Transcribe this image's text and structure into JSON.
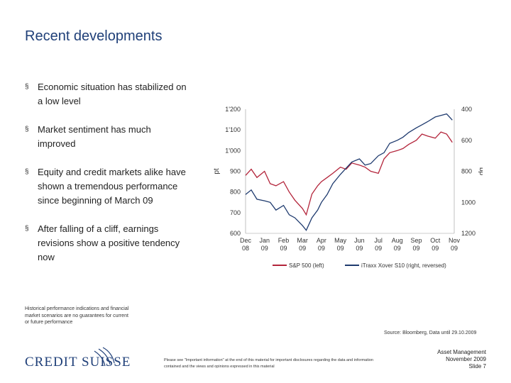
{
  "slide": {
    "title": "Recent developments",
    "bullets": [
      "Economic situation has stabilized on a low level",
      "Market sentiment has much improved",
      "Equity and credit markets alike have shown a tremendous performance since beginning of March 09",
      "After falling of a cliff, earnings revisions show a positive tendency now"
    ],
    "bullet_marker": "§",
    "disclaimer": "Historical performance indications and financial market scenarios are no guarantees for current or future performance",
    "source": "Source: Bloomberg, Data until 29.10.2009",
    "logo_text": "CREDIT SUISSE",
    "footnote": "Please see \"Important information\" at the end of this material for important disclosures regarding the data and information contained and the views and opinions expressed in this material",
    "footer_right": [
      "Asset Management",
      "November 2009",
      "Slide 7"
    ]
  },
  "colors": {
    "sp500": "#b3243a",
    "itraxx": "#1e3a6e",
    "title": "#1f3f78"
  },
  "chart_data": {
    "type": "line",
    "title": "",
    "ylabel_left": "pt",
    "ylabel_right": "bp",
    "ylim_left": [
      600,
      1200
    ],
    "ylim_right_reversed": [
      400,
      1200
    ],
    "yticks_left": [
      "1'200",
      "1'100",
      "1'000",
      "900",
      "800",
      "700",
      "600"
    ],
    "yticks_right": [
      "400",
      "600",
      "800",
      "1000",
      "1200"
    ],
    "x_labels": [
      [
        "Dec",
        "08"
      ],
      [
        "Jan",
        "09"
      ],
      [
        "Feb",
        "09"
      ],
      [
        "Mar",
        "09"
      ],
      [
        "Apr",
        "09"
      ],
      [
        "May",
        "09"
      ],
      [
        "Jun",
        "09"
      ],
      [
        "Jul",
        "09"
      ],
      [
        "Aug",
        "09"
      ],
      [
        "Sep",
        "09"
      ],
      [
        "Oct",
        "09"
      ],
      [
        "Nov",
        "09"
      ]
    ],
    "legend": [
      "S&P 500 (left)",
      "iTraxx Xover S10 (right, reversed)"
    ],
    "series": [
      {
        "name": "S&P 500 (left)",
        "axis": "left",
        "x": [
          0,
          0.3,
          0.6,
          1.0,
          1.3,
          1.6,
          2.0,
          2.3,
          2.6,
          3.0,
          3.2,
          3.5,
          3.8,
          4.0,
          4.3,
          4.6,
          5.0,
          5.3,
          5.6,
          6.0,
          6.3,
          6.6,
          7.0,
          7.3,
          7.6,
          8.0,
          8.3,
          8.6,
          9.0,
          9.3,
          9.6,
          10.0,
          10.3,
          10.6,
          10.9
        ],
        "values": [
          880,
          910,
          870,
          900,
          840,
          830,
          850,
          800,
          760,
          720,
          690,
          790,
          830,
          850,
          870,
          890,
          920,
          910,
          940,
          930,
          920,
          900,
          890,
          960,
          990,
          1000,
          1010,
          1030,
          1050,
          1080,
          1070,
          1060,
          1090,
          1080,
          1040
        ]
      },
      {
        "name": "iTraxx Xover S10 (right, reversed)",
        "axis": "right",
        "x": [
          0,
          0.3,
          0.6,
          1.0,
          1.3,
          1.6,
          2.0,
          2.3,
          2.6,
          3.0,
          3.2,
          3.5,
          3.8,
          4.0,
          4.3,
          4.6,
          5.0,
          5.3,
          5.6,
          6.0,
          6.3,
          6.6,
          7.0,
          7.3,
          7.6,
          8.0,
          8.3,
          8.6,
          9.0,
          9.3,
          9.6,
          10.0,
          10.3,
          10.6,
          10.9
        ],
        "values": [
          950,
          920,
          980,
          990,
          1000,
          1050,
          1020,
          1080,
          1100,
          1150,
          1180,
          1100,
          1050,
          1000,
          950,
          880,
          820,
          780,
          740,
          720,
          760,
          750,
          700,
          680,
          620,
          600,
          580,
          550,
          520,
          500,
          480,
          450,
          440,
          430,
          470
        ]
      }
    ]
  }
}
